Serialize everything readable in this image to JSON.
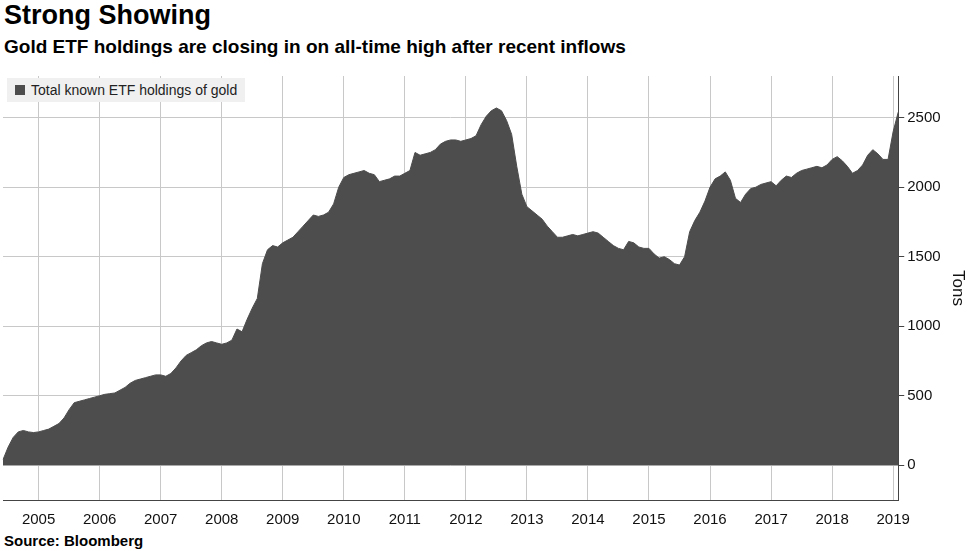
{
  "chart_data": {
    "type": "area",
    "title": "Strong Showing",
    "subtitle": "Gold ETF holdings are closing in on all-time high after recent inflows",
    "source": "Source: Bloomberg",
    "y_label": "Tons",
    "categories": [
      null,
      null,
      null,
      null,
      null,
      null,
      null,
      "2005",
      null,
      null,
      null,
      null,
      null,
      null,
      null,
      null,
      null,
      null,
      null,
      "2006",
      null,
      null,
      null,
      null,
      null,
      null,
      null,
      null,
      null,
      null,
      null,
      "2007",
      null,
      null,
      null,
      null,
      null,
      null,
      null,
      null,
      null,
      null,
      null,
      "2008",
      null,
      null,
      null,
      null,
      null,
      null,
      null,
      null,
      null,
      null,
      null,
      "2009",
      null,
      null,
      null,
      null,
      null,
      null,
      null,
      null,
      null,
      null,
      null,
      "2010",
      null,
      null,
      null,
      null,
      null,
      null,
      null,
      null,
      null,
      null,
      null,
      "2011",
      null,
      null,
      null,
      null,
      null,
      null,
      null,
      null,
      null,
      null,
      null,
      "2012",
      null,
      null,
      null,
      null,
      null,
      null,
      null,
      null,
      null,
      null,
      null,
      "2013",
      null,
      null,
      null,
      null,
      null,
      null,
      null,
      null,
      null,
      null,
      null,
      "2014",
      null,
      null,
      null,
      null,
      null,
      null,
      null,
      null,
      null,
      null,
      null,
      "2015",
      null,
      null,
      null,
      null,
      null,
      null,
      null,
      null,
      null,
      null,
      null,
      "2016",
      null,
      null,
      null,
      null,
      null,
      null,
      null,
      null,
      null,
      null,
      null,
      "2017",
      null,
      null,
      null,
      null,
      null,
      null,
      null,
      null,
      null,
      null,
      null,
      "2018",
      null,
      null,
      null,
      null,
      null,
      null,
      null,
      null,
      null,
      null,
      null,
      "2019",
      null
    ],
    "series": [
      {
        "name": "Total known ETF holdings of gold",
        "color": "#4d4d4d",
        "values": [
          40,
          130,
          200,
          240,
          250,
          240,
          235,
          240,
          250,
          260,
          280,
          300,
          340,
          400,
          450,
          460,
          470,
          480,
          490,
          500,
          510,
          515,
          520,
          540,
          560,
          590,
          610,
          620,
          630,
          640,
          650,
          650,
          640,
          660,
          700,
          750,
          790,
          810,
          830,
          860,
          880,
          890,
          880,
          870,
          880,
          900,
          980,
          960,
          1050,
          1130,
          1200,
          1450,
          1550,
          1580,
          1570,
          1600,
          1620,
          1640,
          1680,
          1720,
          1760,
          1800,
          1790,
          1800,
          1820,
          1880,
          2000,
          2070,
          2090,
          2100,
          2110,
          2120,
          2100,
          2090,
          2040,
          2050,
          2060,
          2080,
          2080,
          2100,
          2120,
          2250,
          2230,
          2240,
          2250,
          2270,
          2310,
          2330,
          2340,
          2340,
          2330,
          2340,
          2350,
          2370,
          2450,
          2510,
          2550,
          2570,
          2550,
          2480,
          2380,
          2150,
          1950,
          1860,
          1830,
          1800,
          1770,
          1720,
          1680,
          1640,
          1640,
          1650,
          1660,
          1650,
          1660,
          1670,
          1680,
          1670,
          1640,
          1610,
          1580,
          1560,
          1550,
          1610,
          1600,
          1570,
          1560,
          1560,
          1520,
          1490,
          1500,
          1480,
          1450,
          1440,
          1500,
          1680,
          1760,
          1820,
          1900,
          2000,
          2060,
          2080,
          2110,
          2050,
          1920,
          1890,
          1950,
          1990,
          2000,
          2020,
          2030,
          2040,
          2010,
          2050,
          2080,
          2070,
          2100,
          2120,
          2130,
          2140,
          2150,
          2140,
          2160,
          2200,
          2220,
          2190,
          2150,
          2100,
          2120,
          2160,
          2230,
          2270,
          2240,
          2200,
          2200,
          2400,
          2540
        ]
      }
    ],
    "ylim": [
      -250,
      2800
    ],
    "yticks": [
      0,
      500,
      1000,
      1500,
      2000,
      2500
    ],
    "grid": true,
    "legend": "top-left"
  }
}
